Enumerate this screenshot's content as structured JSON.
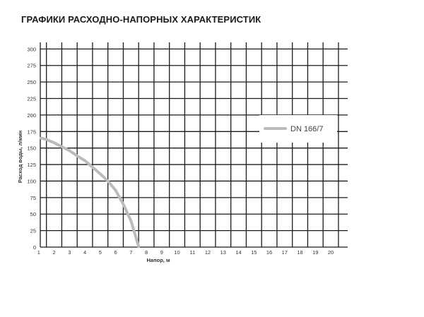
{
  "title": "ГРАФИКИ РАСХОДНО-НАПОРНЫХ ХАРАКТЕРИСТИК",
  "chart_data": {
    "type": "line",
    "title": "ГРАФИКИ РАСХОДНО-НАПОРНЫХ ХАРАКТЕРИСТИК",
    "xlabel": "Напор, м",
    "ylabel": "Расход воды, л/мин",
    "xlim": [
      0.6,
      20.6
    ],
    "ylim": [
      0,
      310
    ],
    "xticks": [
      1,
      2,
      3,
      4,
      5,
      6,
      7,
      8,
      9,
      10,
      11,
      12,
      13,
      14,
      15,
      16,
      17,
      18,
      19,
      20
    ],
    "yticks": [
      0,
      25,
      50,
      75,
      100,
      125,
      150,
      175,
      200,
      225,
      250,
      275,
      300
    ],
    "grid": true,
    "legend": "top-right",
    "series": [
      {
        "name": "DN 166/7",
        "color": "#b8bdb9",
        "x": [
          0.65,
          1,
          1.5,
          2,
          2.5,
          3,
          3.5,
          4,
          4.5,
          5,
          5.5,
          6,
          6.5,
          7
        ],
        "y": [
          165,
          163,
          158,
          152,
          146,
          138,
          131,
          121,
          111,
          100,
          86,
          65,
          40,
          1
        ]
      }
    ]
  }
}
